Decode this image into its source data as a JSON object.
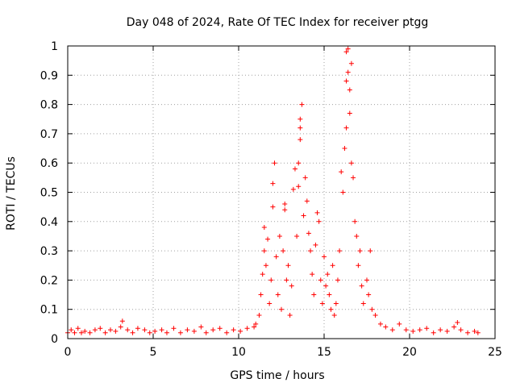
{
  "chart_data": {
    "type": "scatter",
    "title": "Day 048 of 2024, Rate Of TEC Index for receiver ptgg",
    "xlabel": "GPS time / hours",
    "ylabel": "ROTI / TECUs",
    "xlim": [
      0,
      25
    ],
    "ylim": [
      0,
      1
    ],
    "xticks": [
      0,
      5,
      10,
      15,
      20,
      25
    ],
    "yticks": [
      0,
      0.1,
      0.2,
      0.3,
      0.4,
      0.5,
      0.6,
      0.7,
      0.8,
      0.9,
      1
    ],
    "grid": true,
    "series": [
      {
        "color": "#ff0000",
        "marker": "+",
        "points": [
          [
            0.0,
            0.02
          ],
          [
            0.2,
            0.03
          ],
          [
            0.4,
            0.02
          ],
          [
            0.6,
            0.035
          ],
          [
            0.8,
            0.02
          ],
          [
            1.0,
            0.025
          ],
          [
            1.3,
            0.02
          ],
          [
            1.6,
            0.03
          ],
          [
            1.9,
            0.035
          ],
          [
            2.2,
            0.02
          ],
          [
            2.5,
            0.03
          ],
          [
            2.8,
            0.025
          ],
          [
            3.1,
            0.04
          ],
          [
            3.2,
            0.06
          ],
          [
            3.5,
            0.03
          ],
          [
            3.8,
            0.02
          ],
          [
            4.1,
            0.035
          ],
          [
            4.5,
            0.03
          ],
          [
            4.8,
            0.02
          ],
          [
            5.1,
            0.025
          ],
          [
            5.5,
            0.03
          ],
          [
            5.8,
            0.02
          ],
          [
            6.2,
            0.035
          ],
          [
            6.6,
            0.02
          ],
          [
            7.0,
            0.03
          ],
          [
            7.4,
            0.025
          ],
          [
            7.8,
            0.04
          ],
          [
            8.1,
            0.02
          ],
          [
            8.5,
            0.03
          ],
          [
            8.9,
            0.035
          ],
          [
            9.3,
            0.02
          ],
          [
            9.7,
            0.03
          ],
          [
            10.1,
            0.025
          ],
          [
            10.5,
            0.035
          ],
          [
            10.9,
            0.04
          ],
          [
            11.0,
            0.05
          ],
          [
            11.2,
            0.08
          ],
          [
            11.3,
            0.15
          ],
          [
            11.4,
            0.22
          ],
          [
            11.5,
            0.3
          ],
          [
            11.5,
            0.38
          ],
          [
            11.6,
            0.25
          ],
          [
            11.7,
            0.34
          ],
          [
            11.8,
            0.12
          ],
          [
            11.9,
            0.2
          ],
          [
            12.0,
            0.45
          ],
          [
            12.0,
            0.53
          ],
          [
            12.1,
            0.6
          ],
          [
            12.2,
            0.28
          ],
          [
            12.3,
            0.15
          ],
          [
            12.4,
            0.35
          ],
          [
            12.5,
            0.1
          ],
          [
            12.6,
            0.3
          ],
          [
            12.7,
            0.44
          ],
          [
            12.7,
            0.46
          ],
          [
            12.8,
            0.2
          ],
          [
            12.9,
            0.25
          ],
          [
            13.0,
            0.08
          ],
          [
            13.1,
            0.18
          ],
          [
            13.2,
            0.51
          ],
          [
            13.3,
            0.58
          ],
          [
            13.4,
            0.35
          ],
          [
            13.5,
            0.6
          ],
          [
            13.5,
            0.52
          ],
          [
            13.6,
            0.68
          ],
          [
            13.6,
            0.72
          ],
          [
            13.6,
            0.75
          ],
          [
            13.7,
            0.8
          ],
          [
            13.8,
            0.42
          ],
          [
            13.9,
            0.55
          ],
          [
            14.0,
            0.47
          ],
          [
            14.1,
            0.36
          ],
          [
            14.2,
            0.3
          ],
          [
            14.3,
            0.22
          ],
          [
            14.4,
            0.15
          ],
          [
            14.5,
            0.32
          ],
          [
            14.6,
            0.43
          ],
          [
            14.7,
            0.4
          ],
          [
            14.8,
            0.2
          ],
          [
            14.9,
            0.12
          ],
          [
            15.0,
            0.28
          ],
          [
            15.1,
            0.18
          ],
          [
            15.2,
            0.22
          ],
          [
            15.3,
            0.15
          ],
          [
            15.4,
            0.1
          ],
          [
            15.5,
            0.25
          ],
          [
            15.6,
            0.08
          ],
          [
            15.7,
            0.12
          ],
          [
            15.8,
            0.2
          ],
          [
            15.9,
            0.3
          ],
          [
            16.0,
            0.57
          ],
          [
            16.1,
            0.5
          ],
          [
            16.2,
            0.65
          ],
          [
            16.3,
            0.72
          ],
          [
            16.3,
            0.88
          ],
          [
            16.3,
            0.98
          ],
          [
            16.4,
            0.91
          ],
          [
            16.4,
            0.99
          ],
          [
            16.5,
            0.85
          ],
          [
            16.5,
            0.77
          ],
          [
            16.6,
            0.94
          ],
          [
            16.6,
            0.6
          ],
          [
            16.7,
            0.55
          ],
          [
            16.8,
            0.4
          ],
          [
            16.9,
            0.35
          ],
          [
            17.0,
            0.25
          ],
          [
            17.1,
            0.3
          ],
          [
            17.2,
            0.18
          ],
          [
            17.3,
            0.12
          ],
          [
            17.5,
            0.2
          ],
          [
            17.6,
            0.15
          ],
          [
            17.7,
            0.3
          ],
          [
            17.8,
            0.1
          ],
          [
            18.0,
            0.08
          ],
          [
            18.3,
            0.05
          ],
          [
            18.6,
            0.04
          ],
          [
            19.0,
            0.03
          ],
          [
            19.4,
            0.05
          ],
          [
            19.8,
            0.03
          ],
          [
            20.2,
            0.025
          ],
          [
            20.6,
            0.03
          ],
          [
            21.0,
            0.035
          ],
          [
            21.4,
            0.02
          ],
          [
            21.8,
            0.03
          ],
          [
            22.2,
            0.025
          ],
          [
            22.6,
            0.04
          ],
          [
            22.8,
            0.055
          ],
          [
            23.0,
            0.03
          ],
          [
            23.4,
            0.02
          ],
          [
            23.8,
            0.025
          ],
          [
            24.0,
            0.02
          ]
        ]
      }
    ]
  }
}
